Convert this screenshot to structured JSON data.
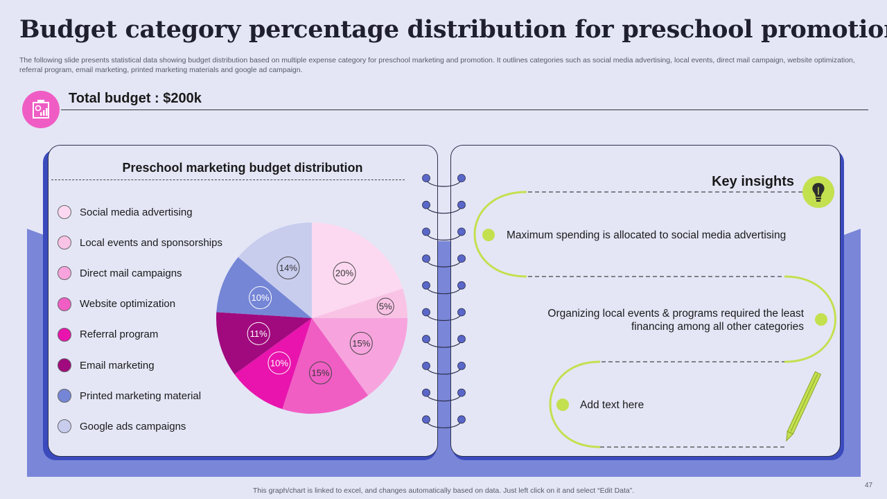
{
  "slide": {
    "title": "Budget category percentage distribution for preschool promotion",
    "subtitle": "The following slide presents statistical data showing budget distribution based on multiple expense category for preschool marketing and promotion. It outlines categories such as social media advertising, local events, direct mail campaign, website optimization, referral program, email marketing, printed marketing materials and google ad campaign.",
    "total_budget": "Total budget : $200k",
    "footer": "This graph/chart is linked to excel, and changes automatically based on data. Just left click on it and select “Edit Data”.",
    "page_number": "47"
  },
  "icons": {
    "budget_badge": "presentation-chart-icon",
    "insights_badge": "lightbulb-icon",
    "pencil": "pencil-icon"
  },
  "colors": {
    "background": "#e4e6f6",
    "panel_shadow": "#3b4bbd",
    "backdrop": "#7a86d8",
    "badge_pink": "#ef5dc4",
    "accent_green": "#c3e04f"
  },
  "chart_data": {
    "type": "pie",
    "title": "Preschool marketing budget distribution",
    "start": "12 o'clock, clockwise",
    "slices": [
      {
        "label": "Social media advertising",
        "value": 20,
        "display": "20%",
        "color": "#fcd9f0"
      },
      {
        "label": "Local events and sponsorships",
        "value": 5,
        "display": "5%",
        "color": "#f9c3e6"
      },
      {
        "label": "Direct mail campaigns",
        "value": 15,
        "display": "15%",
        "color": "#f7a4de"
      },
      {
        "label": "Website optimization",
        "value": 15,
        "display": "15%",
        "color": "#f05ec4"
      },
      {
        "label": "Referral program",
        "value": 10,
        "display": "10%",
        "color": "#e814ad"
      },
      {
        "label": "Email marketing",
        "value": 11,
        "display": "11%",
        "color": "#a10a7e"
      },
      {
        "label": "Printed marketing material",
        "value": 10,
        "display": "10%",
        "color": "#7586d6"
      },
      {
        "label": "Google ads campaigns",
        "value": 14,
        "display": "14%",
        "color": "#c8cdee"
      }
    ]
  },
  "insights": {
    "title": "Key insights",
    "items": [
      "Maximum spending is allocated to social media advertising",
      "Organizing local events & programs required the least financing among all other categories",
      "Add text here"
    ]
  }
}
